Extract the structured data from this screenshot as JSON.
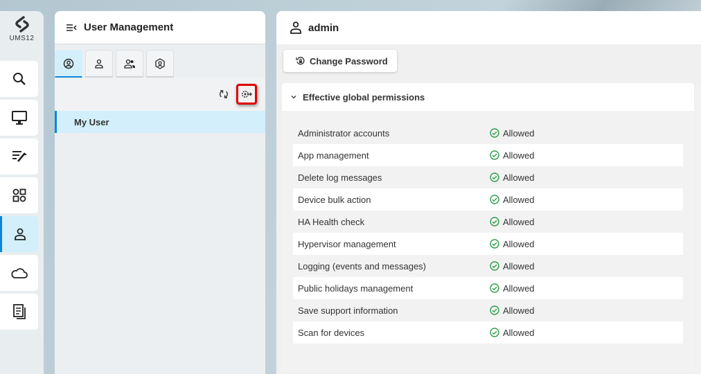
{
  "sidebar": {
    "logo_text": "UMS12",
    "items": [
      {
        "icon": "search-icon",
        "name": "search"
      },
      {
        "icon": "monitor-icon",
        "name": "devices"
      },
      {
        "icon": "configuration-icon",
        "name": "configuration"
      },
      {
        "icon": "apps-icon",
        "name": "apps"
      },
      {
        "icon": "user-icon",
        "name": "users",
        "active": true
      },
      {
        "icon": "cloud-icon",
        "name": "cloud"
      },
      {
        "icon": "logs-icon",
        "name": "logs"
      }
    ],
    "accent": "#0a86d8"
  },
  "user_management": {
    "title": "User Management",
    "tabs": [
      {
        "icon": "my-user-icon",
        "active": true
      },
      {
        "icon": "user-icon"
      },
      {
        "icon": "user-group-icon"
      },
      {
        "icon": "role-icon"
      }
    ],
    "toolbar": {
      "refresh_icon": "refresh-icon",
      "settings_icon": "settings-export-icon"
    },
    "items": [
      {
        "label": "My User",
        "selected": true
      }
    ]
  },
  "detail": {
    "title": "admin",
    "change_password_label": "Change Password",
    "section_title": "Effective global permissions",
    "permissions": [
      {
        "name": "Administrator accounts",
        "status": "Allowed"
      },
      {
        "name": "App management",
        "status": "Allowed"
      },
      {
        "name": "Delete log messages",
        "status": "Allowed"
      },
      {
        "name": "Device bulk action",
        "status": "Allowed"
      },
      {
        "name": "HA Health check",
        "status": "Allowed"
      },
      {
        "name": "Hypervisor management",
        "status": "Allowed"
      },
      {
        "name": "Logging (events and messages)",
        "status": "Allowed"
      },
      {
        "name": "Public holidays management",
        "status": "Allowed"
      },
      {
        "name": "Save support information",
        "status": "Allowed"
      },
      {
        "name": "Scan for devices",
        "status": "Allowed"
      }
    ],
    "allowed_color": "#2e9e4a"
  }
}
